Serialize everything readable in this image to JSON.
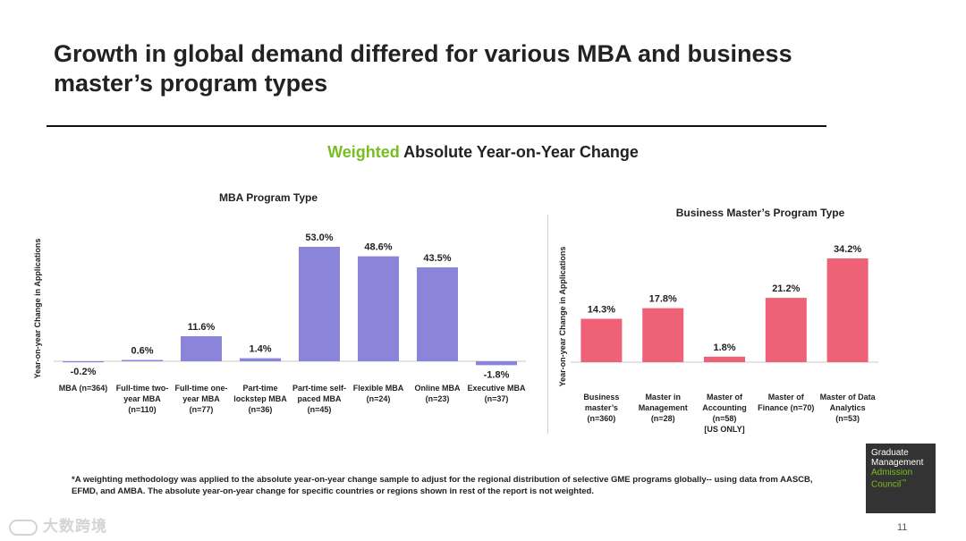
{
  "title": "Growth in global demand differed for various MBA and business master’s program types",
  "subtitle": {
    "accent": "Weighted",
    "rest": " Absolute Year-on-Year Change"
  },
  "colors": {
    "mba_bar": "#8a85d9",
    "masters_bar": "#ef6176",
    "accent": "#78be20",
    "axis": "#c8c8c8"
  },
  "footnote": "*A weighting methodology was applied to the absolute year-on-year change sample to adjust for the regional distribution of selective GME programs globally-- using data from AASCB, EFMD, and AMBA. The absolute year-on-year change for specific countries or regions shown in rest of the report is not weighted.",
  "logo": {
    "line1": "Graduate",
    "line2": "Management",
    "line3": "Admission",
    "line4": "Council",
    "tm": "™"
  },
  "page_number": "11",
  "watermark": "大数跨境",
  "chart_data": [
    {
      "type": "bar",
      "title": "MBA Program Type",
      "ylabel": "Year-on-year Change in Applications",
      "xlabel": "",
      "categories": [
        "MBA (n=364)",
        "Full-time two-year MBA (n=110)",
        "Full-time one-year MBA (n=77)",
        "Part-time lockstep MBA (n=36)",
        "Part-time self-paced MBA (n=45)",
        "Flexible MBA (n=24)",
        "Online MBA (n=23)",
        "Executive MBA (n=37)"
      ],
      "category_lines": [
        [
          "MBA (n=364)"
        ],
        [
          "Full-time two-",
          "year MBA",
          "(n=110)"
        ],
        [
          "Full-time one-",
          "year MBA",
          "(n=77)"
        ],
        [
          "Part-time",
          "lockstep MBA",
          "(n=36)"
        ],
        [
          "Part-time self-",
          "paced MBA",
          "(n=45)"
        ],
        [
          "Flexible MBA",
          "(n=24)"
        ],
        [
          "Online MBA",
          "(n=23)"
        ],
        [
          "Executive MBA",
          "(n=37)"
        ]
      ],
      "values": [
        -0.2,
        0.6,
        11.6,
        1.4,
        53.0,
        48.6,
        43.5,
        -1.8
      ],
      "labels": [
        "-0.2%",
        "0.6%",
        "11.6%",
        "1.4%",
        "53.0%",
        "48.6%",
        "43.5%",
        "-1.8%"
      ],
      "ylim": [
        -6,
        53
      ]
    },
    {
      "type": "bar",
      "title": "Business Master’s Program Type",
      "ylabel": "Year-on-year Change in Applications",
      "xlabel": "",
      "categories": [
        "Business master’s (n=360)",
        "Master in Management (n=28)",
        "Master of Accounting (n=58) [US ONLY]",
        "Master of Finance (n=70)",
        "Master of Data Analytics (n=53)"
      ],
      "category_lines": [
        [
          "Business",
          "master’s",
          "(n=360)"
        ],
        [
          "Master in",
          "Management",
          "(n=28)"
        ],
        [
          "Master of",
          "Accounting",
          "(n=58)",
          "[US ONLY]"
        ],
        [
          "Master of",
          "Finance (n=70)"
        ],
        [
          "Master of Data",
          "Analytics",
          "(n=53)"
        ]
      ],
      "values": [
        14.3,
        17.8,
        1.8,
        21.2,
        34.2
      ],
      "labels": [
        "14.3%",
        "17.8%",
        "1.8%",
        "21.2%",
        "34.2%"
      ],
      "ylim": [
        0,
        34.2
      ]
    }
  ]
}
